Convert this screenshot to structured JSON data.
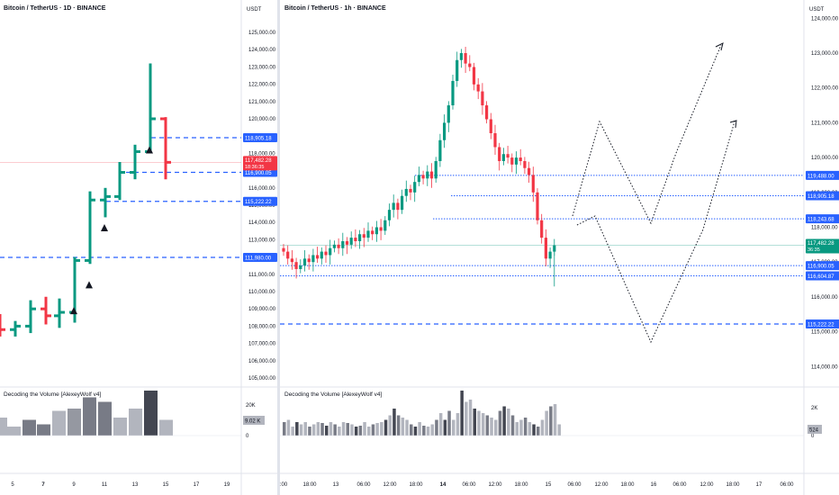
{
  "left_chart": {
    "title": "Bitcoin / TetherUS · 1D · BINANCE",
    "currency": "USDT",
    "price_ticks": [
      "125,000.00",
      "124,000.00",
      "123,000.00",
      "122,000.00",
      "121,000.00",
      "120,000.00",
      "119,000.00",
      "118,000.00",
      "117,000.00",
      "116,000.00",
      "115,000.00",
      "114,000.00",
      "113,000.00",
      "112,000.00",
      "111,000.00",
      "110,000.00",
      "109,000.00",
      "108,000.00",
      "107,000.00",
      "106,000.00",
      "105,000.00"
    ],
    "level_labels": [
      {
        "text": "118,905.18",
        "color": "#2962ff"
      },
      {
        "text": "116,900.05",
        "color": "#2962ff"
      },
      {
        "text": "115,222.22",
        "color": "#2962ff"
      },
      {
        "text": "111,980.00",
        "color": "#2962ff"
      }
    ],
    "last_price": {
      "price": "117,482.28",
      "countdown": "18:36:35",
      "color": "#f23645"
    },
    "time_ticks": [
      "5",
      "7",
      "9",
      "11",
      "13",
      "15",
      "17",
      "19"
    ],
    "volume": {
      "title": "Decoding the Volume [AlexeyWolf v4]",
      "ticks": [
        "20K",
        "0"
      ],
      "value_label": "9.02 K"
    }
  },
  "right_chart": {
    "title": "Bitcoin / TetherUS · 1h · BINANCE",
    "currency": "USDT",
    "price_ticks": [
      "124,000.00",
      "123,000.00",
      "122,000.00",
      "121,000.00",
      "120,000.00",
      "119,000.00",
      "118,000.00",
      "117,000.00",
      "116,000.00",
      "115,000.00",
      "114,000.00"
    ],
    "level_labels": [
      {
        "text": "119,488.00",
        "color": "#2962ff"
      },
      {
        "text": "118,905.18",
        "color": "#2962ff"
      },
      {
        "text": "118,243.68",
        "color": "#2962ff"
      },
      {
        "text": "116,900.05",
        "color": "#2962ff"
      },
      {
        "text": "116,604.87",
        "color": "#2962ff"
      },
      {
        "text": "115,222.22",
        "color": "#2962ff"
      }
    ],
    "last_price": {
      "price": "117,482.28",
      "countdown": "36:35",
      "color": "#089981"
    },
    "time_ticks": [
      ":00",
      "18:00",
      "13",
      "06:00",
      "12:00",
      "18:00",
      "14",
      "06:00",
      "12:00",
      "18:00",
      "15",
      "06:00",
      "12:00",
      "18:00",
      "16",
      "06:00",
      "12:00",
      "18:00",
      "17",
      "06:00"
    ],
    "volume": {
      "title": "Decoding the Volume [AlexeyWolf v4]",
      "ticks": [
        "2K",
        "0"
      ],
      "value_label": "524"
    }
  },
  "colors": {
    "up": "#089981",
    "down": "#f23645",
    "level_line": "#2962ff",
    "grid": "#f0f3fa",
    "volume_bar": "#b2b5be",
    "volume_dark": "#434651"
  }
}
